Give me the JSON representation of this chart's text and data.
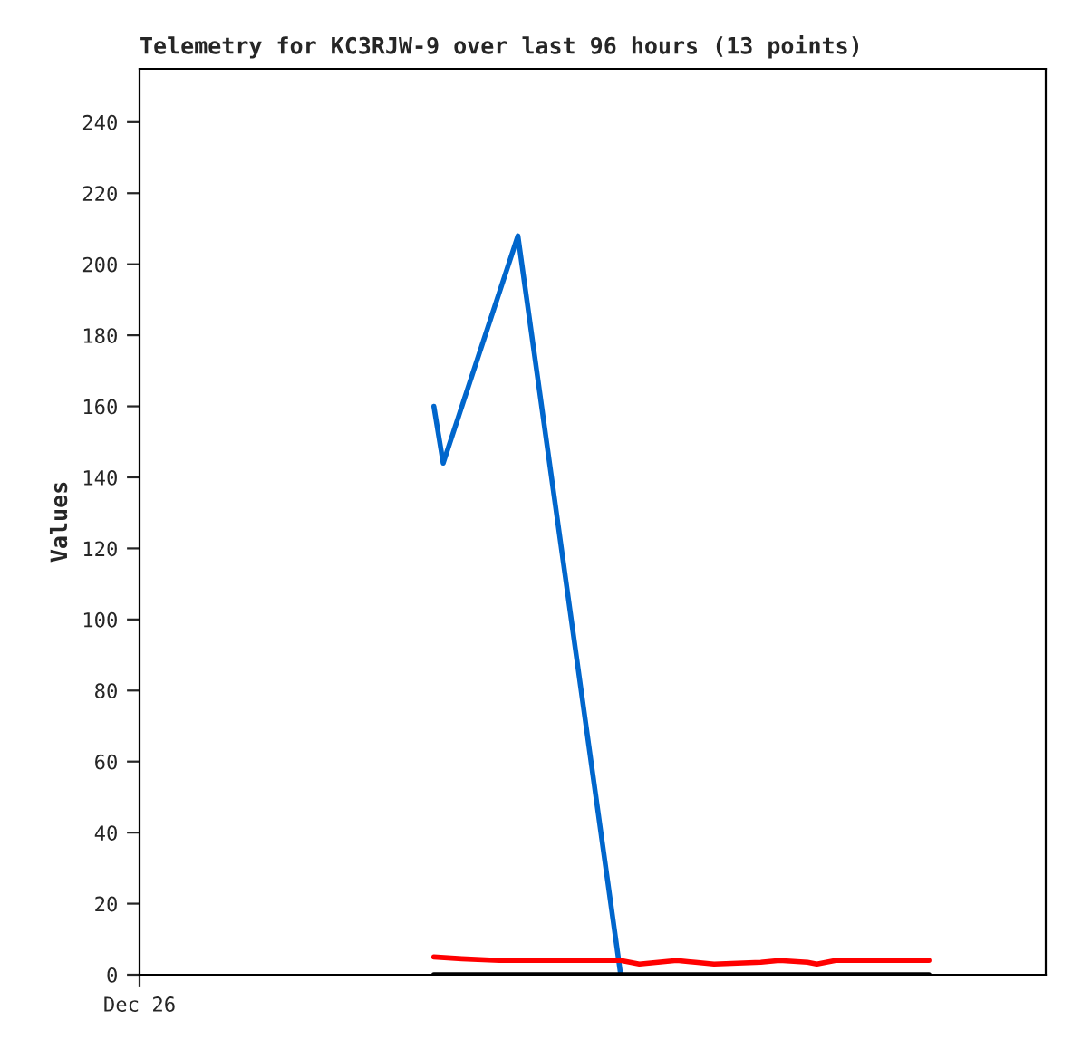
{
  "chart_data": {
    "type": "line",
    "title": "Telemetry for KC3RJW-9 over last 96 hours (13 points)",
    "ylabel": "Values",
    "categories": [
      "Dec 26",
      null,
      null,
      null,
      null,
      null,
      null,
      null,
      null,
      null,
      null,
      null,
      null,
      null,
      null,
      null,
      null,
      null,
      null,
      null,
      null,
      null,
      null,
      null,
      null,
      null,
      null,
      null,
      null,
      null,
      null,
      null,
      null,
      null,
      null,
      null,
      null,
      null,
      null,
      null,
      null,
      null,
      null,
      null,
      null,
      null,
      null,
      null,
      null,
      null,
      null,
      null,
      null,
      null,
      null,
      null,
      null,
      null,
      null,
      null,
      null,
      null,
      null,
      null,
      null,
      null,
      null,
      null,
      null,
      null,
      null,
      null,
      null,
      null,
      null,
      null,
      null,
      null,
      null,
      null,
      null,
      null,
      null,
      null,
      null,
      null,
      null,
      null,
      null,
      null,
      null,
      null,
      null,
      null,
      null,
      null,
      null
    ],
    "ylim": [
      0,
      255
    ],
    "yticks": [
      0,
      20,
      40,
      60,
      80,
      100,
      120,
      140,
      160,
      180,
      200,
      220,
      240
    ],
    "grid": false,
    "legend": false,
    "series": [
      {
        "color": "#0066cc",
        "values": [
          null,
          null,
          null,
          null,
          null,
          null,
          null,
          null,
          null,
          null,
          null,
          null,
          null,
          null,
          null,
          null,
          null,
          null,
          null,
          null,
          null,
          null,
          null,
          null,
          null,
          null,
          null,
          null,
          null,
          null,
          null,
          160,
          144,
          null,
          null,
          null,
          null,
          null,
          null,
          null,
          208,
          null,
          null,
          null,
          null,
          null,
          null,
          null,
          null,
          null,
          null,
          0,
          null,
          null,
          null,
          null,
          null,
          null,
          null,
          null,
          null,
          null,
          null,
          null,
          null,
          null,
          null,
          null,
          null,
          null,
          null,
          null,
          null,
          null,
          null,
          null,
          null,
          null,
          null,
          null,
          null,
          null,
          null,
          null,
          null,
          null,
          null,
          null,
          null,
          null,
          null,
          null,
          null,
          null,
          null,
          null,
          null
        ]
      },
      {
        "color": "#ff0000",
        "values": [
          null,
          null,
          null,
          null,
          null,
          null,
          null,
          null,
          null,
          null,
          null,
          null,
          null,
          null,
          null,
          null,
          null,
          null,
          null,
          null,
          null,
          null,
          null,
          null,
          null,
          null,
          null,
          null,
          null,
          null,
          null,
          5,
          null,
          null,
          4.5,
          null,
          null,
          null,
          4,
          null,
          null,
          null,
          null,
          null,
          null,
          null,
          null,
          null,
          null,
          null,
          null,
          4,
          null,
          3,
          null,
          3.5,
          null,
          4,
          null,
          3.5,
          null,
          3,
          null,
          null,
          null,
          null,
          3.5,
          null,
          4,
          null,
          null,
          3.5,
          3,
          null,
          4,
          null,
          null,
          null,
          null,
          null,
          null,
          null,
          null,
          null,
          4,
          null,
          null,
          null,
          null,
          null,
          null,
          null,
          null,
          null,
          null,
          null,
          null
        ]
      },
      {
        "color": "#000000",
        "values": [
          null,
          null,
          null,
          null,
          null,
          null,
          null,
          null,
          null,
          null,
          null,
          null,
          null,
          null,
          null,
          null,
          null,
          null,
          null,
          null,
          null,
          null,
          null,
          null,
          null,
          null,
          null,
          null,
          null,
          null,
          null,
          0,
          null,
          null,
          null,
          null,
          null,
          null,
          null,
          null,
          null,
          null,
          null,
          null,
          null,
          null,
          null,
          null,
          null,
          null,
          null,
          null,
          null,
          null,
          null,
          null,
          null,
          null,
          null,
          null,
          null,
          null,
          null,
          null,
          null,
          null,
          null,
          null,
          null,
          null,
          null,
          null,
          null,
          null,
          null,
          null,
          null,
          null,
          null,
          null,
          null,
          null,
          null,
          null,
          0,
          null,
          null,
          null,
          null,
          null,
          null,
          null,
          null,
          null,
          null,
          null,
          null
        ]
      }
    ]
  }
}
